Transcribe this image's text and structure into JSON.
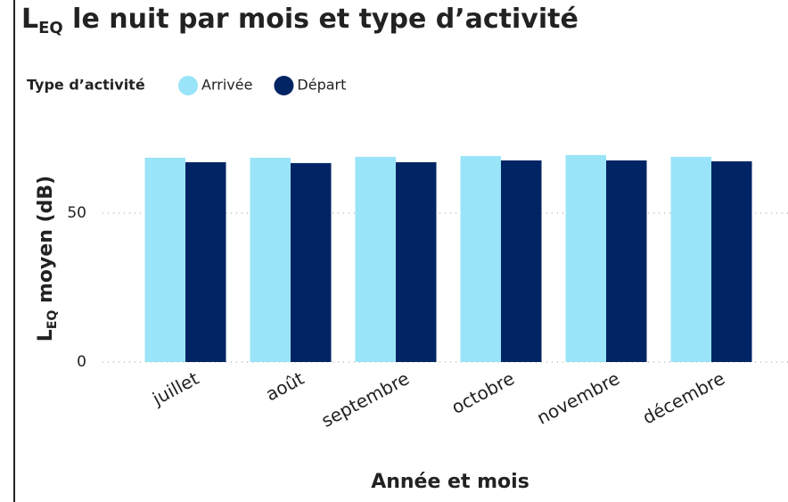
{
  "chart_data": {
    "type": "bar",
    "title": "L",
    "title_sub": "EQ",
    "title_rest": " le nuit par mois et type d’activité",
    "legend_title": "Type d’activité",
    "y_label": "L",
    "y_label_sub": "EQ",
    "y_label_rest": " moyen (dB)",
    "x_label": "Année et mois",
    "categories": [
      "juillet",
      "août",
      "septembre",
      "octobre",
      "novembre",
      "décembre"
    ],
    "series": [
      {
        "name": "Arrivée",
        "color": "#99e4f8",
        "values": [
          68.6,
          68.6,
          68.9,
          69.2,
          69.5,
          68.9
        ]
      },
      {
        "name": "Départ",
        "color": "#002464",
        "values": [
          67.1,
          66.8,
          67.1,
          67.7,
          67.7,
          67.4
        ]
      }
    ],
    "ylim": [
      0,
      74
    ],
    "yticks": [
      0,
      50
    ],
    "grid": true
  }
}
